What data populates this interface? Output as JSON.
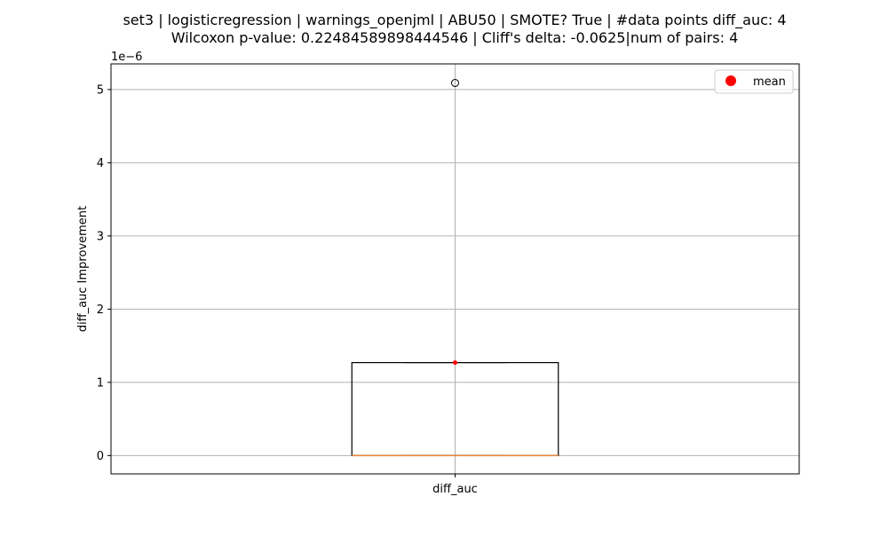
{
  "chart_data": {
    "type": "box",
    "title_line1": "set3 | logisticregression | warnings_openjml | ABU50 | SMOTE? True | #data points diff_auc: 4",
    "title_line2": "Wilcoxon p-value: 0.22484589898444546 | Cliff's delta: -0.0625|num of pairs: 4",
    "ylabel": "diff_auc Improvement",
    "y_offset_label": "1e−6",
    "y_scale": 1e-06,
    "ylim": [
      -0.25,
      5.35
    ],
    "yticks": [
      0,
      1,
      2,
      3,
      4,
      5
    ],
    "ytick_labels": [
      "0",
      "1",
      "2",
      "3",
      "4",
      "5"
    ],
    "categories": [
      "diff_auc"
    ],
    "boxes": [
      {
        "category": "diff_auc",
        "whisker_low": 0.0,
        "q1": 0.0,
        "median": 0.0,
        "q3": 1.27,
        "whisker_high": 1.27,
        "mean": 1.27,
        "outliers": [
          5.09
        ]
      }
    ],
    "grid": true,
    "legend": {
      "position": "top-right",
      "entries": [
        {
          "label": "mean",
          "color": "#ff0000"
        }
      ]
    },
    "colors": {
      "box": "#000000",
      "median": "#e8853a",
      "mean": "#ff0000",
      "grid": "#b0b0b0"
    }
  }
}
